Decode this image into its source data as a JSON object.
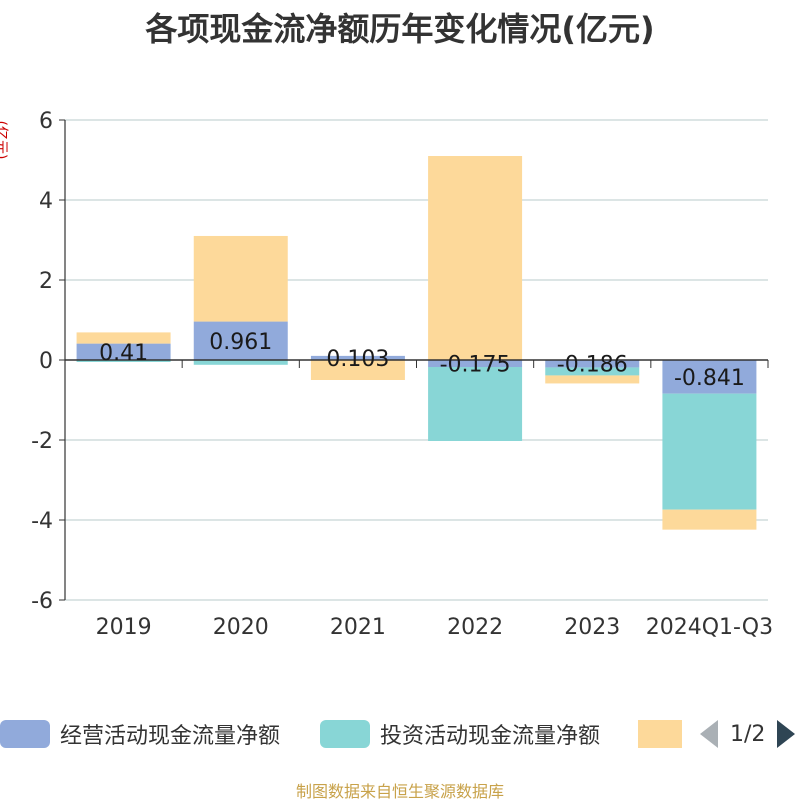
{
  "title": "各项现金流净额历年变化情况(亿元)",
  "unit_label": "(亿元)",
  "legend": {
    "items": [
      {
        "label": "经营活动现金流量净额",
        "color": "#91aadb"
      },
      {
        "label": "投资活动现金流量净额",
        "color": "#88d6d6"
      },
      {
        "label": "",
        "color": "#fdd99a"
      }
    ],
    "page": "1/2"
  },
  "source": "制图数据来自恒生聚源数据库",
  "chart_data": {
    "type": "bar",
    "stacked": true,
    "categories": [
      "2019",
      "2020",
      "2021",
      "2022",
      "2023",
      "2024Q1-Q3"
    ],
    "ylim": [
      -6,
      6
    ],
    "yticks": [
      -6,
      -4,
      -2,
      0,
      2,
      4,
      6
    ],
    "grid": true,
    "series": [
      {
        "name": "经营活动现金流量净额",
        "color": "#91aadb",
        "values": [
          0.41,
          0.961,
          0.103,
          -0.175,
          -0.186,
          -0.841
        ],
        "labels": [
          "0.41",
          "0.961",
          "0.103",
          "-0.175",
          "-0.186",
          "-0.841"
        ]
      },
      {
        "name": "投资活动现金流量净额",
        "color": "#88d6d6",
        "values": [
          -0.05,
          -0.12,
          0.0,
          -1.85,
          -0.2,
          -2.9
        ]
      },
      {
        "color": "#fdd99a",
        "values": [
          0.28,
          2.14,
          -0.5,
          5.1,
          -0.2,
          -0.5
        ]
      }
    ]
  }
}
